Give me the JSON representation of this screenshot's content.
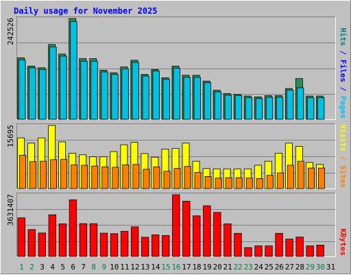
{
  "chart_data": {
    "type": "bar",
    "title": "Daily usage for November 2025",
    "categories": [
      "1",
      "2",
      "3",
      "4",
      "5",
      "6",
      "7",
      "8",
      "9",
      "10",
      "11",
      "12",
      "13",
      "14",
      "15",
      "16",
      "17",
      "18",
      "19",
      "20",
      "21",
      "22",
      "23",
      "24",
      "25",
      "26",
      "27",
      "28",
      "29",
      "30",
      "31"
    ],
    "weekend_days": [
      "1",
      "2",
      "8",
      "9",
      "15",
      "16",
      "22",
      "23",
      "29",
      "30"
    ],
    "panels": [
      {
        "id": "hits-files-pages",
        "ymax_label": "242526",
        "ylim": [
          0,
          242526
        ],
        "right_labels": [
          {
            "text": "Pages",
            "color": "#00c0ff"
          },
          {
            "text": " / ",
            "color": "#0000ff"
          },
          {
            "text": "Files",
            "color": "#0000ff"
          },
          {
            "text": " / ",
            "color": "#0000ff"
          },
          {
            "text": "Hits",
            "color": "#008080"
          }
        ],
        "series": [
          {
            "name": "Hits",
            "color": "#2e8b57",
            "values": [
              148000,
              128000,
              124000,
              180000,
              157000,
              242526,
              146000,
              146000,
              118000,
              112000,
              126000,
              142000,
              108000,
              120000,
              100000,
              128000,
              106000,
              106000,
              92000,
              70000,
              62000,
              60000,
              56000,
              54000,
              57000,
              57000,
              74000,
              98000,
              56000,
              56000,
              0
            ]
          },
          {
            "name": "Files",
            "color": "#00c0e0",
            "values": [
              143000,
              124000,
              120000,
              174000,
              152000,
              235000,
              140000,
              140000,
              114000,
              108000,
              121000,
              137000,
              104000,
              116000,
              96000,
              123000,
              101000,
              101000,
              88000,
              66000,
              58000,
              57000,
              52000,
              50000,
              53000,
              53000,
              70000,
              76000,
              52000,
              52000,
              0
            ]
          },
          {
            "name": "Pages",
            "color": "#00c0ff",
            "values": [
              1,
              1,
              1,
              1,
              1,
              1,
              1,
              1,
              1,
              1,
              1,
              1,
              1,
              1,
              1,
              1,
              1,
              1,
              1,
              1,
              1,
              1,
              1,
              1,
              1,
              1,
              1,
              1,
              1,
              1,
              0
            ]
          }
        ]
      },
      {
        "id": "visits-sites",
        "ymax_label": "15695",
        "ylim": [
          0,
          15695
        ],
        "right_labels": [
          {
            "text": "Sites",
            "color": "#ff8000"
          },
          {
            "text": " / ",
            "color": "#ff8000"
          },
          {
            "text": "Visits",
            "color": "#ffff00"
          }
        ],
        "series": [
          {
            "name": "Visits",
            "color": "#ffff00",
            "values": [
              12600,
              11300,
              12600,
              15695,
              11600,
              8800,
              8400,
              7900,
              7900,
              9200,
              10900,
              11500,
              8700,
              7800,
              9800,
              10000,
              11300,
              6800,
              5000,
              4900,
              4900,
              4900,
              4900,
              5800,
              6800,
              8800,
              11300,
              10500,
              6500,
              6000,
              0
            ]
          },
          {
            "name": "Sites",
            "color": "#ff8000",
            "values": [
              8300,
              6700,
              6800,
              7200,
              7300,
              5900,
              5800,
              5600,
              5400,
              5300,
              5900,
              6000,
              4800,
              5400,
              4300,
              5000,
              5500,
              4000,
              3000,
              2600,
              2700,
              2700,
              2600,
              2500,
              3300,
              3900,
              5800,
              6800,
              5100,
              5100,
              0
            ]
          }
        ]
      },
      {
        "id": "kbytes",
        "ymax_label": "3631407",
        "ylim": [
          0,
          3631407
        ],
        "right_labels": [
          {
            "text": "KBytes",
            "color": "#ff0000"
          }
        ],
        "series": [
          {
            "name": "KBytes",
            "color": "#ff0000",
            "values": [
              2270000,
              1580000,
              1380000,
              2450000,
              1920000,
              3330000,
              1930000,
              1930000,
              1370000,
              1340000,
              1480000,
              1740000,
              1130000,
              1270000,
              1230000,
              3631407,
              3250000,
              2390000,
              2980000,
              2590000,
              1920000,
              1360000,
              520000,
              620000,
              620000,
              1360000,
              1020000,
              1140000,
              620000,
              670000,
              0
            ]
          }
        ]
      }
    ]
  }
}
